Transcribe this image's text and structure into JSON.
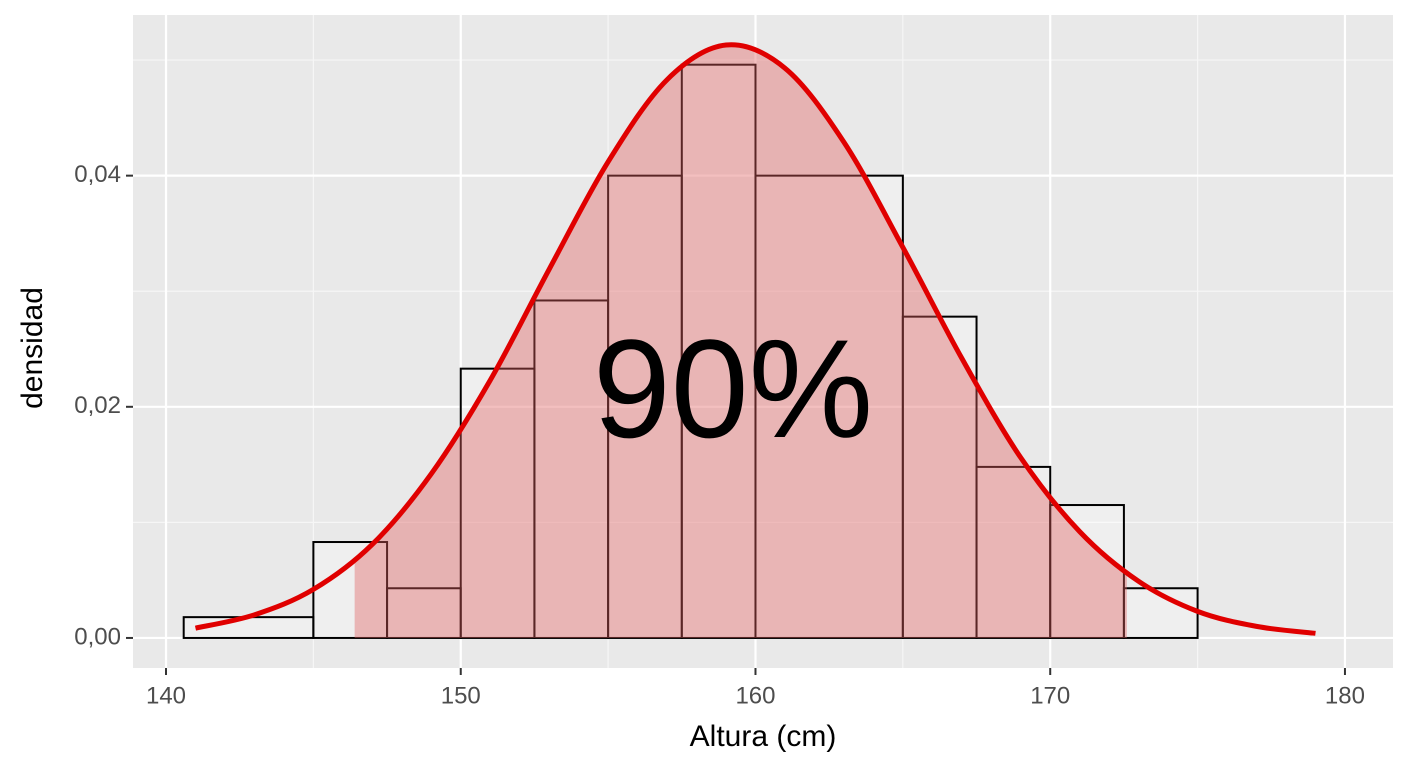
{
  "chart_data": {
    "type": "histogram",
    "x_label": "Altura (cm)",
    "y_label": "densidad",
    "bins": [
      140.6,
      145,
      147.5,
      150,
      152.5,
      155,
      157.5,
      160,
      165,
      167.5,
      170,
      172.5,
      175
    ],
    "values": [
      0.0018,
      0.0083,
      0.0043,
      0.0233,
      0.0292,
      0.04,
      0.0496,
      0.04,
      0.0278,
      0.0148,
      0.0115,
      0.0043
    ],
    "curve": {
      "color": "#e00000",
      "x": [
        141,
        143,
        145,
        147,
        149,
        151,
        153,
        155,
        157,
        159,
        161,
        163,
        165,
        167,
        169,
        171,
        173,
        175,
        177,
        179
      ],
      "values": [
        0.00085,
        0.002,
        0.0042,
        0.0081,
        0.0142,
        0.0223,
        0.0319,
        0.0412,
        0.0483,
        0.0513,
        0.0493,
        0.0429,
        0.0338,
        0.0242,
        0.0156,
        0.0092,
        0.0049,
        0.0023,
        0.001,
        0.0004
      ]
    },
    "shade": {
      "from": 146.4,
      "to": 172.6,
      "color": "#e06060"
    },
    "annotation": "90%",
    "xlim": [
      138.88,
      181.63
    ],
    "ylim": [
      -0.0026,
      0.0539
    ],
    "xticks": [
      140,
      150,
      160,
      170,
      180
    ],
    "yticks": [
      {
        "value": 0,
        "label": "0,00"
      },
      {
        "value": 0.02,
        "label": "0,02"
      },
      {
        "value": 0.04,
        "label": "0,04"
      }
    ],
    "xminor": [
      145,
      155,
      165,
      175
    ],
    "yminor": [
      0.01,
      0.03,
      0.05
    ],
    "grid": true
  }
}
